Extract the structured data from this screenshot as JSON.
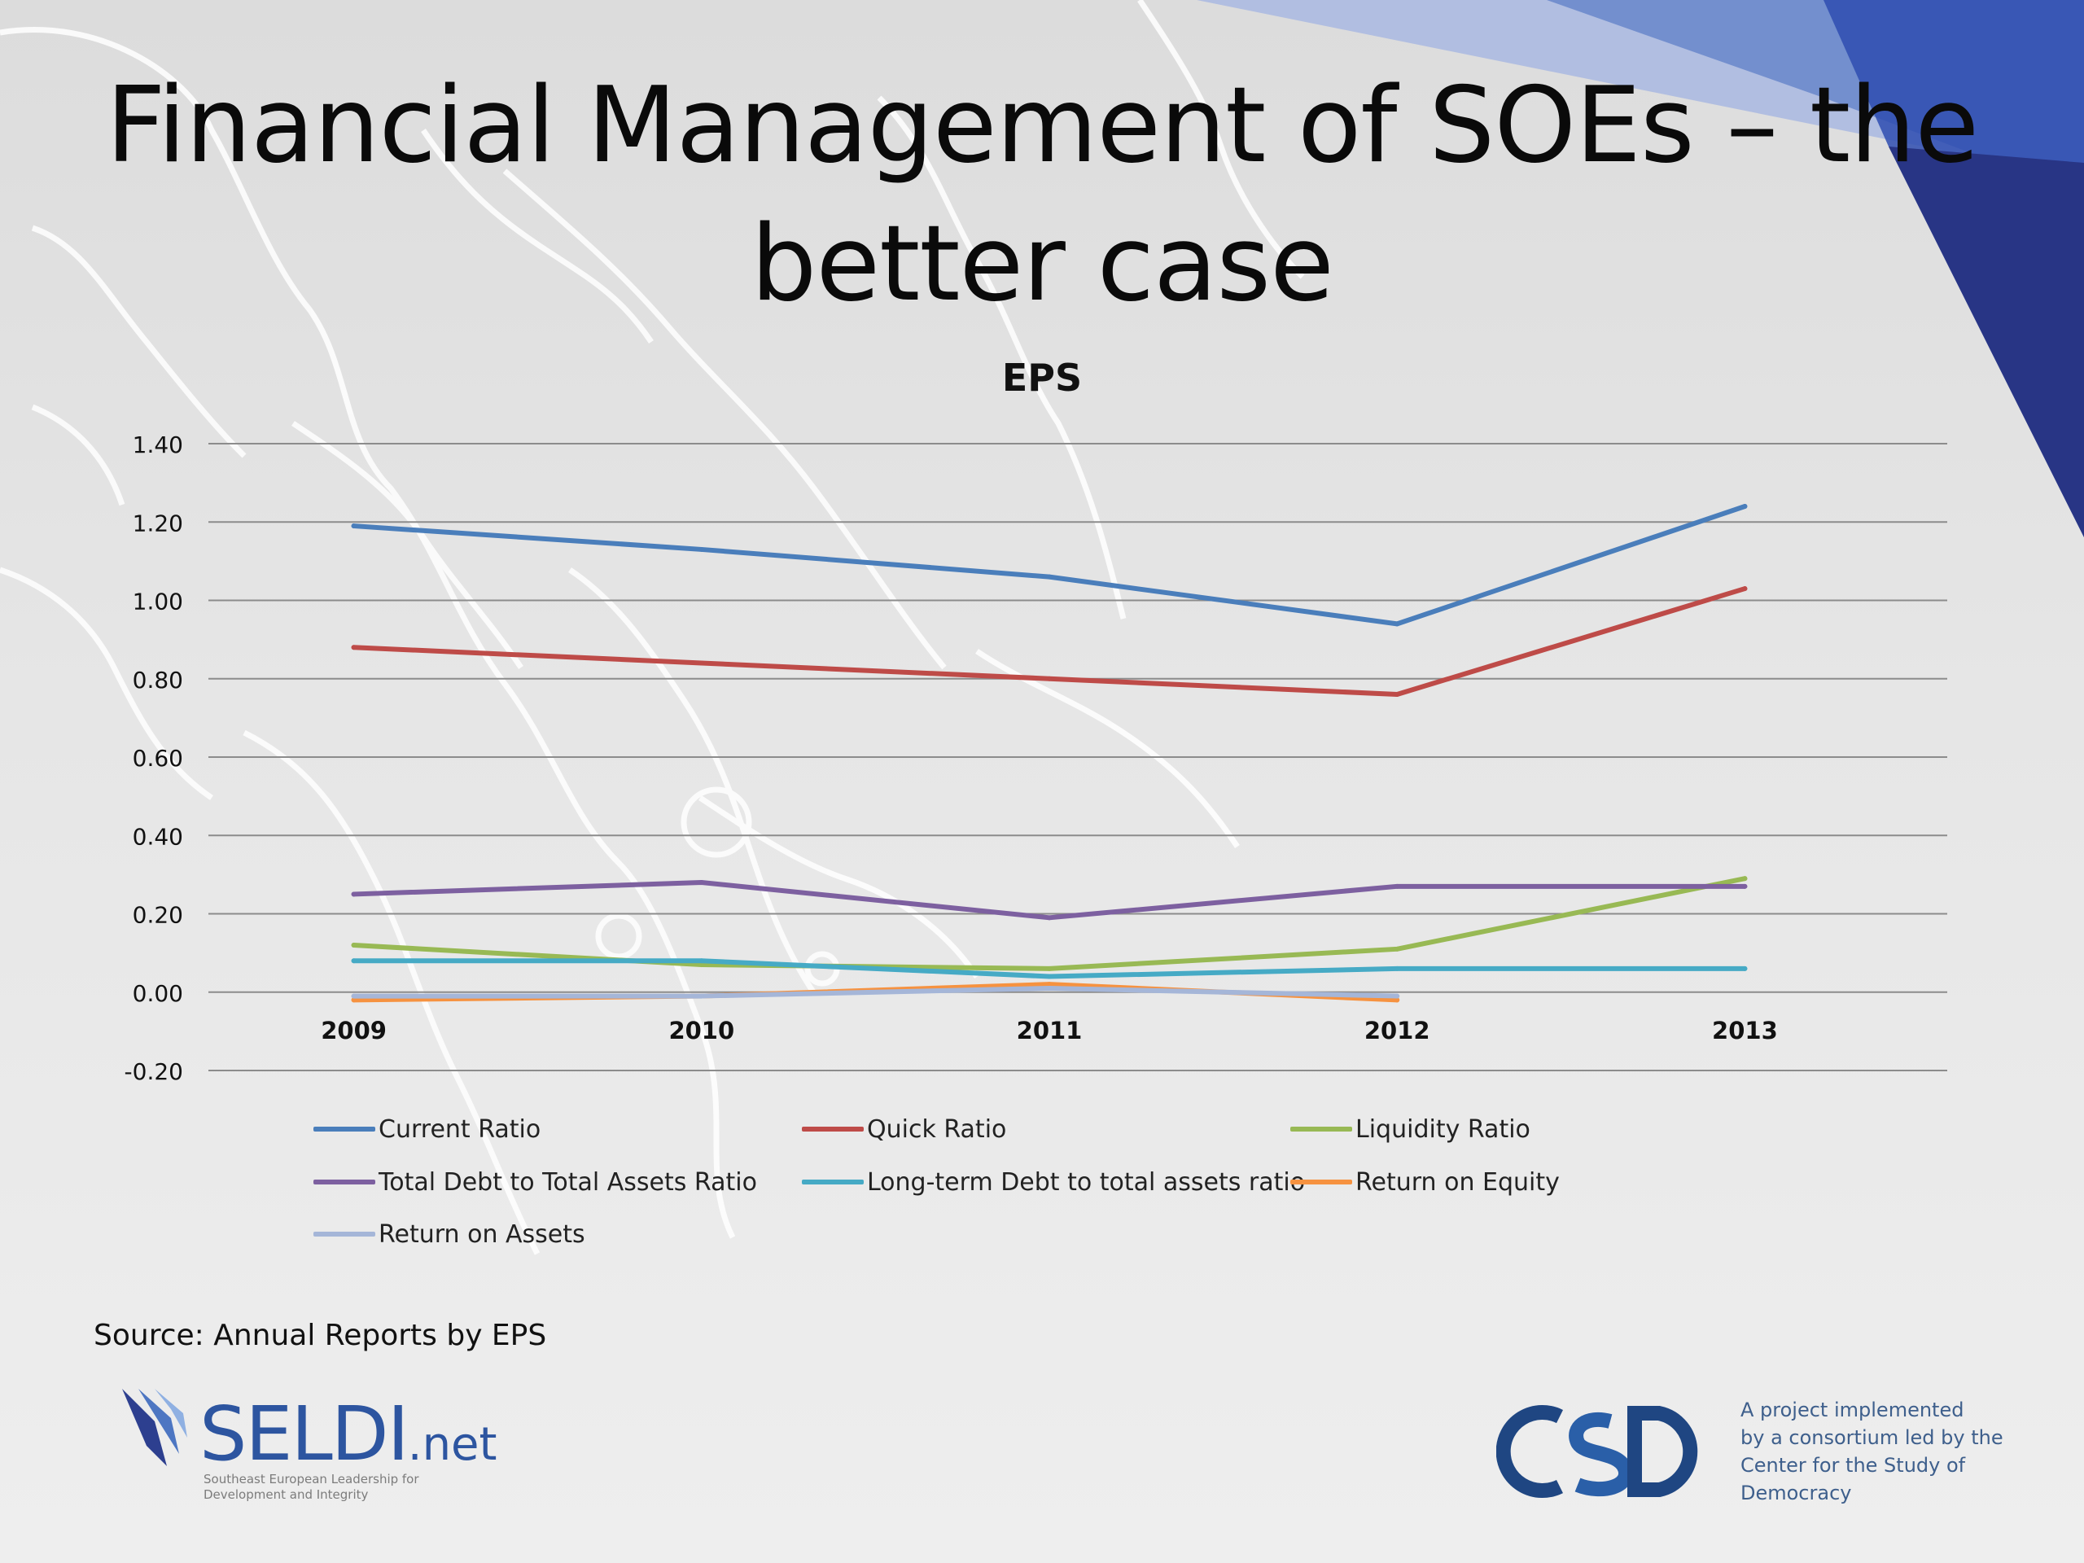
{
  "slide": {
    "title_line1": "Financial Management of SOEs – the",
    "title_line2": "better case",
    "source": "Source: Annual Reports by EPS"
  },
  "logos": {
    "seldi": {
      "name": "SELDI",
      "suffix": ".net",
      "subtitle_line1": "Southeast European Leadership for",
      "subtitle_line2": "Development and Integrity"
    },
    "csd": {
      "name": "CSD",
      "text_lines": [
        "A project implemented",
        "by a consortium led by the",
        "Center for the Study of",
        "Democracy"
      ]
    }
  },
  "colors": {
    "accent_blue": "#2d55a0",
    "corner_dark": "#2e3a8c",
    "corner_mid": "#5f7fc7",
    "corner_light": "#9fb1df"
  },
  "chart_data": {
    "type": "line",
    "title": "EPS",
    "categories": [
      "2009",
      "2010",
      "2011",
      "2012",
      "2013"
    ],
    "ylim": [
      -0.2,
      1.4
    ],
    "yticks": [
      "-0.20",
      "0.00",
      "0.20",
      "0.40",
      "0.60",
      "0.80",
      "1.00",
      "1.20",
      "1.40"
    ],
    "grid": true,
    "legend_position": "bottom",
    "series": [
      {
        "name": "Current Ratio",
        "color": "#4a7ebb",
        "values": [
          1.19,
          1.13,
          1.06,
          0.94,
          1.24
        ]
      },
      {
        "name": "Quick Ratio",
        "color": "#be4b48",
        "values": [
          0.88,
          0.84,
          0.8,
          0.76,
          1.03
        ]
      },
      {
        "name": "Liquidity Ratio",
        "color": "#98b954",
        "values": [
          0.12,
          0.07,
          0.06,
          0.11,
          0.29
        ]
      },
      {
        "name": "Total Debt to Total Assets Ratio",
        "color": "#7d60a0",
        "values": [
          0.25,
          0.28,
          0.19,
          0.27,
          0.27
        ]
      },
      {
        "name": "Long-term Debt to total assets ratio",
        "color": "#46aac5",
        "values": [
          0.08,
          0.08,
          0.04,
          0.06,
          0.06
        ]
      },
      {
        "name": "Return on Equity",
        "color": "#f69240",
        "values": [
          -0.02,
          -0.01,
          0.02,
          -0.02,
          null
        ]
      },
      {
        "name": "Return on Assets",
        "color": "#a5b6d8",
        "values": [
          -0.01,
          -0.01,
          0.01,
          -0.01,
          null
        ]
      }
    ]
  }
}
